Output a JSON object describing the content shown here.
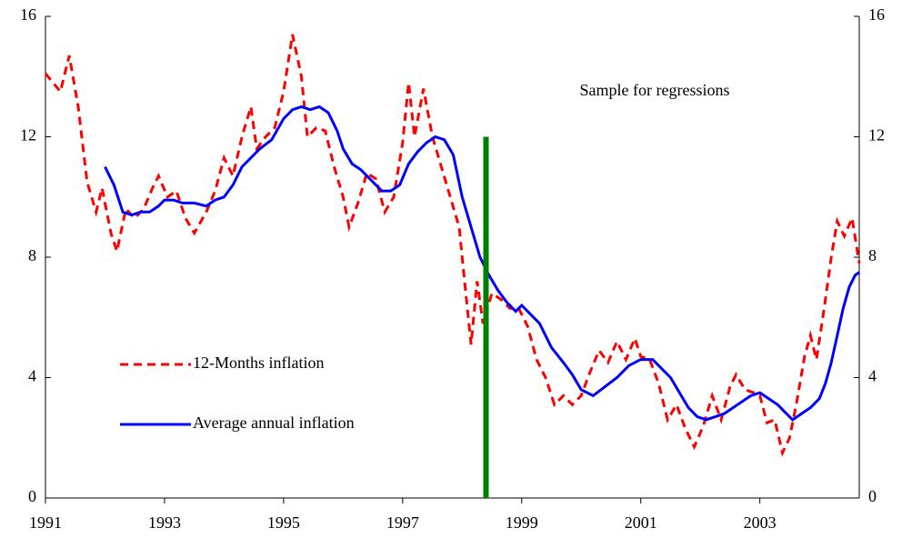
{
  "chart_data": {
    "type": "line",
    "annotation": "Sample for regressions",
    "xlim": [
      1991,
      2004.67
    ],
    "xticks": [
      1991,
      1993,
      1995,
      1997,
      1999,
      2001,
      2003
    ],
    "ylim": [
      0,
      16
    ],
    "yticks": [
      0,
      4,
      8,
      12,
      16
    ],
    "y2lim": [
      0,
      16
    ],
    "y2ticks": [
      0,
      4,
      8,
      12,
      16
    ],
    "legend": "lower left",
    "vline": {
      "x": 1998.4,
      "ymax": 12,
      "color": "#008000"
    },
    "series": [
      {
        "name": "12-Months inflation",
        "color": "#ff0000",
        "dashed": true,
        "x": [
          1991.0,
          1991.25,
          1991.4,
          1991.55,
          1991.7,
          1991.85,
          1991.95,
          1992.1,
          1992.2,
          1992.35,
          1992.5,
          1992.65,
          1992.8,
          1992.9,
          1993.05,
          1993.2,
          1993.35,
          1993.5,
          1993.7,
          1993.85,
          1994.0,
          1994.15,
          1994.3,
          1994.45,
          1994.55,
          1994.7,
          1994.85,
          1995.0,
          1995.15,
          1995.3,
          1995.4,
          1995.55,
          1995.7,
          1995.85,
          1996.0,
          1996.1,
          1996.25,
          1996.4,
          1996.55,
          1996.7,
          1996.85,
          1997.0,
          1997.1,
          1997.2,
          1997.35,
          1997.5,
          1997.65,
          1997.8,
          1997.95,
          1998.05,
          1998.15,
          1998.25,
          1998.35,
          1998.5,
          1998.65,
          1998.8,
          1998.95,
          1999.1,
          1999.25,
          1999.4,
          1999.55,
          1999.7,
          1999.85,
          2000.0,
          2000.15,
          2000.3,
          2000.45,
          2000.6,
          2000.75,
          2000.9,
          2001.0,
          2001.15,
          2001.3,
          2001.45,
          2001.6,
          2001.75,
          2001.9,
          2002.05,
          2002.2,
          2002.35,
          2002.5,
          2002.6,
          2002.75,
          2002.9,
          2003.0,
          2003.12,
          2003.25,
          2003.38,
          2003.5,
          2003.62,
          2003.75,
          2003.85,
          2003.95,
          2004.08,
          2004.2,
          2004.3,
          2004.42,
          2004.55,
          2004.67
        ],
        "values": [
          14.1,
          13.5,
          14.7,
          13.0,
          10.5,
          9.5,
          10.3,
          8.8,
          8.2,
          9.6,
          9.3,
          9.6,
          10.3,
          10.7,
          10.0,
          10.2,
          9.3,
          8.8,
          9.5,
          10.2,
          11.3,
          10.7,
          12.0,
          13.0,
          11.6,
          12.0,
          12.3,
          13.5,
          15.4,
          14.0,
          12.0,
          12.3,
          12.2,
          11.0,
          10.0,
          9.0,
          9.8,
          10.8,
          10.6,
          9.5,
          10.0,
          11.8,
          13.8,
          12.0,
          13.6,
          12.0,
          11.0,
          10.0,
          9.0,
          7.0,
          5.1,
          7.2,
          5.8,
          6.8,
          6.6,
          6.3,
          6.3,
          5.7,
          4.6,
          4.0,
          3.1,
          3.4,
          3.1,
          3.4,
          4.2,
          4.9,
          4.5,
          5.2,
          4.6,
          5.3,
          4.7,
          4.6,
          3.8,
          2.6,
          3.1,
          2.3,
          1.7,
          2.4,
          3.4,
          2.6,
          3.7,
          4.1,
          3.6,
          3.5,
          3.4,
          2.5,
          2.6,
          1.5,
          2.0,
          3.2,
          4.7,
          5.4,
          4.6,
          6.3,
          8.0,
          9.2,
          8.7,
          9.3,
          7.8
        ]
      },
      {
        "name": "Average annual inflation",
        "color": "#0000ff",
        "dashed": false,
        "x": [
          1992.0,
          1992.15,
          1992.3,
          1992.45,
          1992.6,
          1992.75,
          1992.9,
          1993.0,
          1993.15,
          1993.3,
          1993.5,
          1993.7,
          1993.85,
          1994.0,
          1994.15,
          1994.3,
          1994.45,
          1994.6,
          1994.8,
          1995.0,
          1995.15,
          1995.3,
          1995.45,
          1995.6,
          1995.75,
          1995.9,
          1996.0,
          1996.15,
          1996.3,
          1996.5,
          1996.65,
          1996.8,
          1996.95,
          1997.1,
          1997.25,
          1997.4,
          1997.55,
          1997.7,
          1997.85,
          1998.0,
          1998.15,
          1998.3,
          1998.45,
          1998.6,
          1998.75,
          1998.9,
          1999.0,
          1999.15,
          1999.3,
          1999.5,
          1999.7,
          1999.85,
          2000.0,
          2000.2,
          2000.4,
          2000.6,
          2000.8,
          2001.0,
          2001.2,
          2001.35,
          2001.5,
          2001.65,
          2001.8,
          2001.95,
          2002.1,
          2002.25,
          2002.4,
          2002.55,
          2002.7,
          2002.85,
          2003.0,
          2003.15,
          2003.3,
          2003.45,
          2003.55,
          2003.7,
          2003.85,
          2004.0,
          2004.1,
          2004.2,
          2004.3,
          2004.4,
          2004.5,
          2004.6,
          2004.67
        ],
        "values": [
          11.0,
          10.4,
          9.5,
          9.4,
          9.5,
          9.5,
          9.7,
          9.9,
          9.9,
          9.8,
          9.8,
          9.7,
          9.9,
          10.0,
          10.4,
          11.0,
          11.3,
          11.6,
          11.9,
          12.6,
          12.9,
          13.0,
          12.9,
          13.0,
          12.8,
          12.2,
          11.6,
          11.1,
          10.9,
          10.5,
          10.2,
          10.2,
          10.4,
          11.1,
          11.5,
          11.8,
          12.0,
          11.9,
          11.4,
          10.0,
          9.0,
          8.0,
          7.4,
          6.9,
          6.5,
          6.2,
          6.4,
          6.1,
          5.8,
          5.0,
          4.5,
          4.1,
          3.6,
          3.4,
          3.7,
          4.0,
          4.4,
          4.6,
          4.6,
          4.3,
          4.0,
          3.5,
          3.0,
          2.7,
          2.6,
          2.7,
          2.8,
          3.0,
          3.2,
          3.4,
          3.5,
          3.3,
          3.1,
          2.8,
          2.6,
          2.8,
          3.0,
          3.3,
          3.8,
          4.5,
          5.4,
          6.3,
          7.0,
          7.4,
          7.5
        ]
      }
    ]
  }
}
